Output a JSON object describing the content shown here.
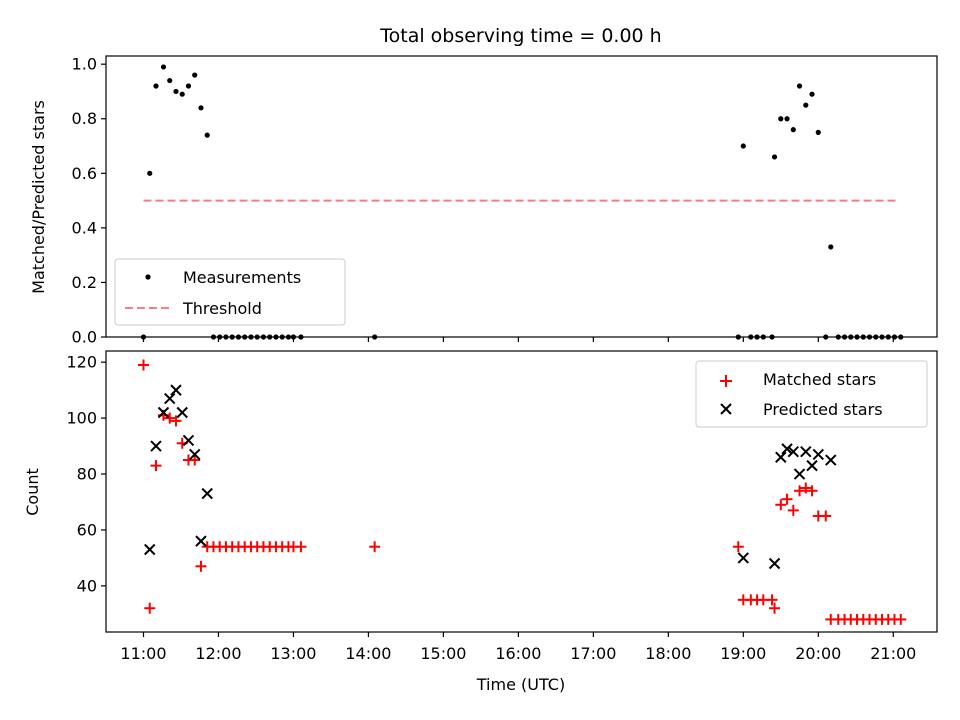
{
  "figure": {
    "title": "Total observing time = 0.00 h",
    "top_ylabel": "Matched/Predicted stars",
    "bottom_ylabel": "Count",
    "xlabel": "Time (UTC)"
  },
  "colors": {
    "measurements": "#000000",
    "threshold": "#f08080",
    "matched": "#ff0000",
    "predicted": "#000000"
  },
  "chart_data": [
    {
      "type": "scatter",
      "title": "Total observing time = 0.00 h",
      "xlabel": "",
      "ylabel": "Matched/Predicted stars",
      "ylim": [
        0,
        1.03
      ],
      "xlim": [
        "10:30",
        "21:35"
      ],
      "yticks": [
        "0.0",
        "0.2",
        "0.4",
        "0.6",
        "0.8",
        "1.0"
      ],
      "legend_position": "lower-left",
      "series": [
        {
          "name": "Measurements",
          "marker": "dot",
          "color": "#000000",
          "points": [
            [
              "11:00",
              0.0
            ],
            [
              "11:05",
              0.6
            ],
            [
              "11:10",
              0.92
            ],
            [
              "11:16",
              0.99
            ],
            [
              "11:21",
              0.94
            ],
            [
              "11:26",
              0.9
            ],
            [
              "11:31",
              0.89
            ],
            [
              "11:36",
              0.92
            ],
            [
              "11:41",
              0.96
            ],
            [
              "11:46",
              0.84
            ],
            [
              "11:51",
              0.74
            ],
            [
              "11:56",
              0.0
            ],
            [
              "12:01",
              0.0
            ],
            [
              "12:06",
              0.0
            ],
            [
              "12:11",
              0.0
            ],
            [
              "12:16",
              0.0
            ],
            [
              "12:21",
              0.0
            ],
            [
              "12:26",
              0.0
            ],
            [
              "12:31",
              0.0
            ],
            [
              "12:36",
              0.0
            ],
            [
              "12:41",
              0.0
            ],
            [
              "12:46",
              0.0
            ],
            [
              "12:51",
              0.0
            ],
            [
              "12:56",
              0.0
            ],
            [
              "13:00",
              0.0
            ],
            [
              "13:06",
              0.0
            ],
            [
              "14:05",
              0.0
            ],
            [
              "18:56",
              0.0
            ],
            [
              "19:00",
              0.7
            ],
            [
              "19:06",
              0.0
            ],
            [
              "19:11",
              0.0
            ],
            [
              "19:16",
              0.0
            ],
            [
              "19:23",
              0.0
            ],
            [
              "19:25",
              0.66
            ],
            [
              "19:30",
              0.8
            ],
            [
              "19:35",
              0.8
            ],
            [
              "19:40",
              0.76
            ],
            [
              "19:45",
              0.92
            ],
            [
              "19:50",
              0.85
            ],
            [
              "19:55",
              0.89
            ],
            [
              "20:00",
              0.75
            ],
            [
              "20:06",
              0.0
            ],
            [
              "20:10",
              0.33
            ],
            [
              "20:16",
              0.0
            ],
            [
              "20:21",
              0.0
            ],
            [
              "20:26",
              0.0
            ],
            [
              "20:31",
              0.0
            ],
            [
              "20:36",
              0.0
            ],
            [
              "20:41",
              0.0
            ],
            [
              "20:46",
              0.0
            ],
            [
              "20:51",
              0.0
            ],
            [
              "20:56",
              0.0
            ],
            [
              "21:01",
              0.0
            ],
            [
              "21:06",
              0.0
            ]
          ]
        },
        {
          "name": "Threshold",
          "marker": "dashed-line",
          "color": "#f08080",
          "points": [
            [
              "11:00",
              0.5
            ],
            [
              "21:05",
              0.5
            ]
          ]
        }
      ]
    },
    {
      "type": "scatter",
      "title": "",
      "xlabel": "Time (UTC)",
      "ylabel": "Count",
      "ylim": [
        23.5,
        124
      ],
      "xlim": [
        "10:30",
        "21:35"
      ],
      "yticks": [
        "40",
        "60",
        "80",
        "100",
        "120"
      ],
      "xticks": [
        "11:00",
        "12:00",
        "13:00",
        "14:00",
        "15:00",
        "16:00",
        "17:00",
        "18:00",
        "19:00",
        "20:00",
        "21:00"
      ],
      "legend_position": "upper-right",
      "series": [
        {
          "name": "Matched stars",
          "marker": "plus",
          "color": "#ff0000",
          "points": [
            [
              "11:00",
              119
            ],
            [
              "11:05",
              32
            ],
            [
              "11:10",
              83
            ],
            [
              "11:16",
              101
            ],
            [
              "11:21",
              100
            ],
            [
              "11:26",
              99
            ],
            [
              "11:31",
              91
            ],
            [
              "11:36",
              85
            ],
            [
              "11:41",
              85
            ],
            [
              "11:46",
              47
            ],
            [
              "11:51",
              54
            ],
            [
              "11:56",
              54
            ],
            [
              "12:01",
              54
            ],
            [
              "12:06",
              54
            ],
            [
              "12:11",
              54
            ],
            [
              "12:16",
              54
            ],
            [
              "12:21",
              54
            ],
            [
              "12:26",
              54
            ],
            [
              "12:31",
              54
            ],
            [
              "12:36",
              54
            ],
            [
              "12:41",
              54
            ],
            [
              "12:46",
              54
            ],
            [
              "12:51",
              54
            ],
            [
              "12:56",
              54
            ],
            [
              "13:00",
              54
            ],
            [
              "13:06",
              54
            ],
            [
              "14:05",
              54
            ],
            [
              "18:56",
              54
            ],
            [
              "19:00",
              35
            ],
            [
              "19:06",
              35
            ],
            [
              "19:11",
              35
            ],
            [
              "19:16",
              35
            ],
            [
              "19:23",
              35
            ],
            [
              "19:25",
              32
            ],
            [
              "19:30",
              69
            ],
            [
              "19:35",
              71
            ],
            [
              "19:40",
              67
            ],
            [
              "19:45",
              74
            ],
            [
              "19:50",
              75
            ],
            [
              "19:55",
              74
            ],
            [
              "20:00",
              65
            ],
            [
              "20:06",
              65
            ],
            [
              "20:10",
              28
            ],
            [
              "20:16",
              28
            ],
            [
              "20:21",
              28
            ],
            [
              "20:26",
              28
            ],
            [
              "20:31",
              28
            ],
            [
              "20:36",
              28
            ],
            [
              "20:41",
              28
            ],
            [
              "20:46",
              28
            ],
            [
              "20:51",
              28
            ],
            [
              "20:56",
              28
            ],
            [
              "21:01",
              28
            ],
            [
              "21:06",
              28
            ]
          ]
        },
        {
          "name": "Predicted stars",
          "marker": "x",
          "color": "#000000",
          "points": [
            [
              "11:05",
              53
            ],
            [
              "11:10",
              90
            ],
            [
              "11:16",
              102
            ],
            [
              "11:21",
              107
            ],
            [
              "11:26",
              110
            ],
            [
              "11:31",
              102
            ],
            [
              "11:36",
              92
            ],
            [
              "11:41",
              87
            ],
            [
              "11:46",
              56
            ],
            [
              "11:51",
              73
            ],
            [
              "18:60",
              50
            ],
            [
              "19:25",
              48
            ],
            [
              "19:30",
              86
            ],
            [
              "19:35",
              89
            ],
            [
              "19:40",
              88
            ],
            [
              "19:45",
              80
            ],
            [
              "19:50",
              88
            ],
            [
              "19:55",
              83
            ],
            [
              "20:00",
              87
            ],
            [
              "20:10",
              85
            ]
          ]
        }
      ]
    }
  ]
}
